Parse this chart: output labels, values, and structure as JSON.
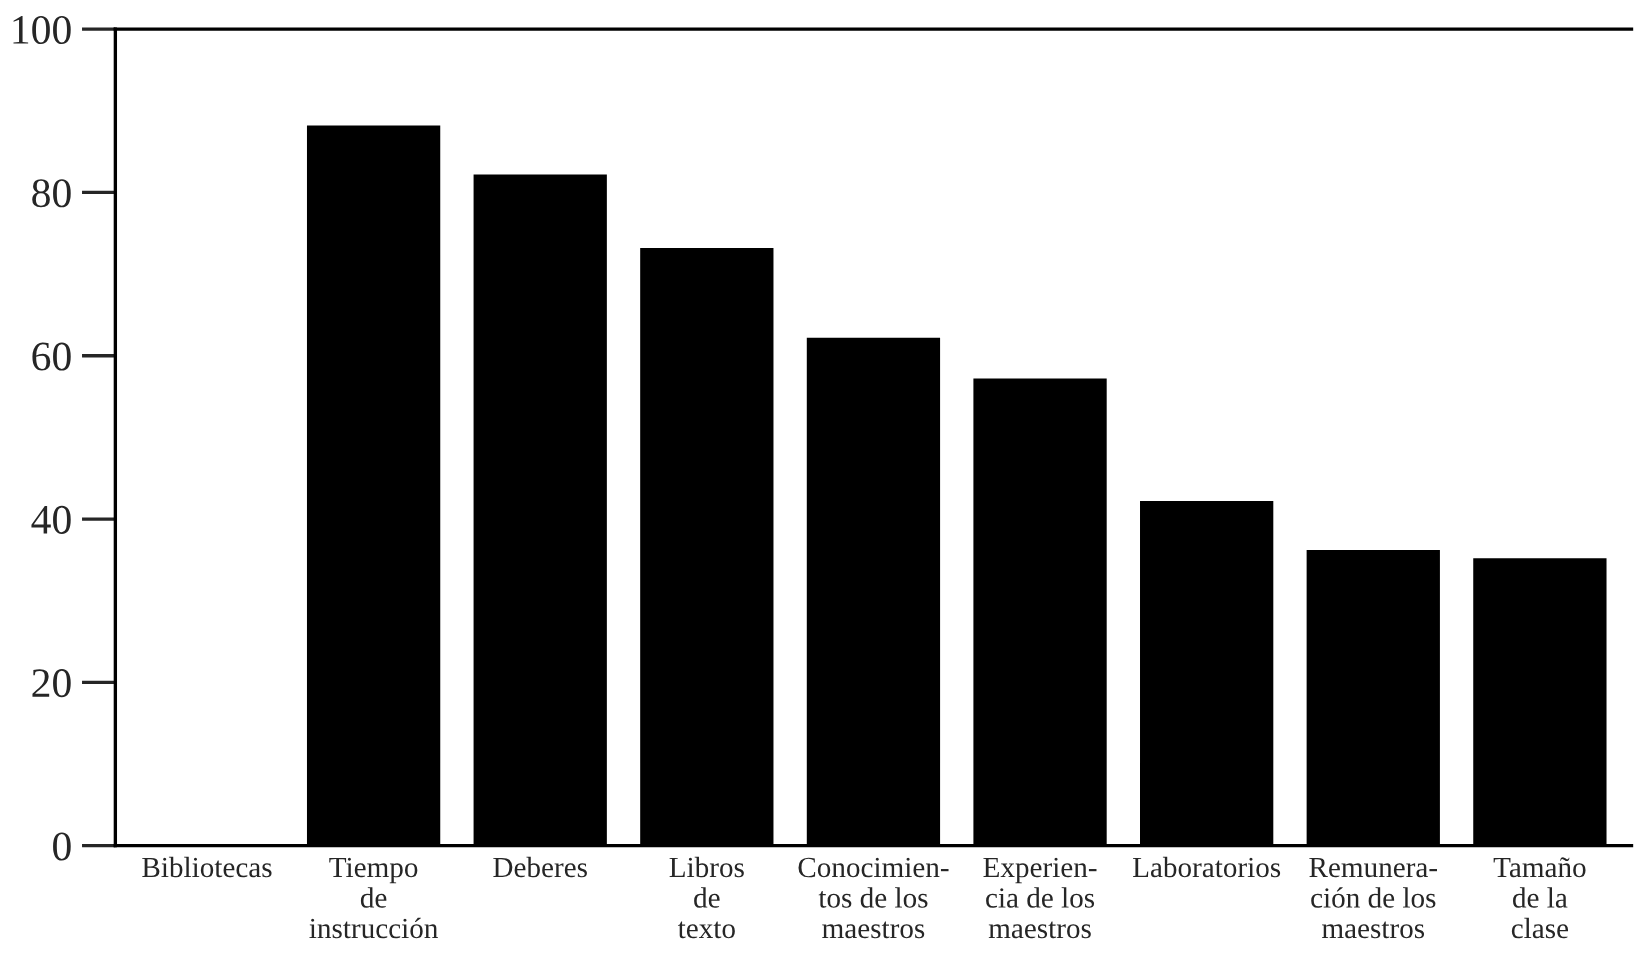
{
  "chart_data": {
    "type": "bar",
    "categories": [
      "Bibliotecas",
      "Tiempo\nde\ninstrucción",
      "Deberes",
      "Libros\nde\ntexto",
      "Conocimien-\ntos de los\nmaestros",
      "Experien-\ncia de los\nmaestros",
      "Laboratorios",
      "Remunera-\nción de los\nmaestros",
      "Tamaño\nde la\nclase"
    ],
    "values": [
      0,
      88,
      82,
      73,
      62,
      57,
      42,
      36,
      35
    ],
    "color": "#000000",
    "ylim": [
      0,
      100
    ],
    "yticks": [
      0,
      20,
      40,
      60,
      80,
      100
    ],
    "grid": false
  }
}
